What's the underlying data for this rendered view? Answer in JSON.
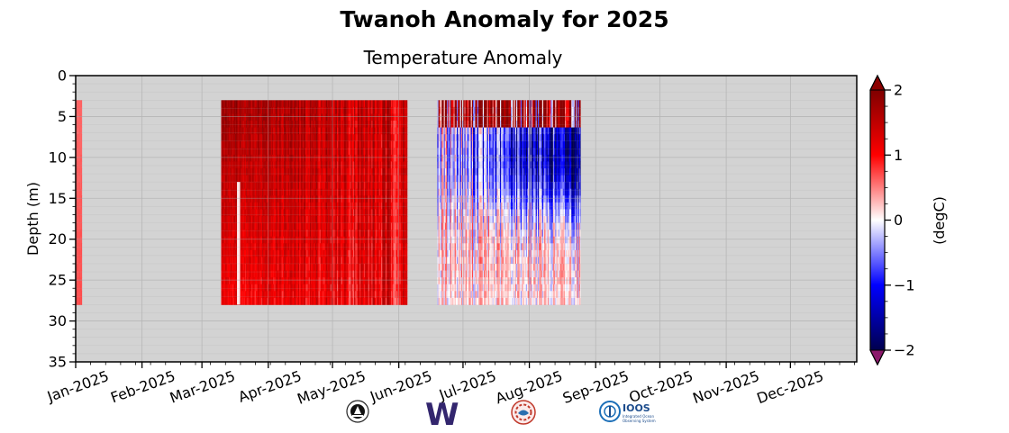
{
  "title": "Twanoh Anomaly for 2025",
  "chart_data": {
    "type": "heatmap",
    "subtitle": "Temperature Anomaly",
    "ylabel": "Depth (m)",
    "ylim": [
      35,
      0
    ],
    "yticks": [
      0,
      5,
      10,
      15,
      20,
      25,
      30,
      35
    ],
    "x_range": [
      "2025-01-01",
      "2025-12-31"
    ],
    "xticks": [
      "Jan-2025",
      "Feb-2025",
      "Mar-2025",
      "Apr-2025",
      "May-2025",
      "Jun-2025",
      "Jul-2025",
      "Aug-2025",
      "Sep-2025",
      "Oct-2025",
      "Nov-2025",
      "Dec-2025"
    ],
    "xtick_dates": [
      "2025-01-01",
      "2025-02-01",
      "2025-03-01",
      "2025-04-01",
      "2025-05-01",
      "2025-06-01",
      "2025-07-01",
      "2025-08-01",
      "2025-09-01",
      "2025-10-01",
      "2025-11-01",
      "2025-12-01"
    ],
    "grid": true,
    "background_color": "#d3d3d3",
    "colorbar": {
      "label": "(degC)",
      "range": [
        -2,
        2
      ],
      "ticks": [
        2,
        1,
        0,
        -1,
        -2
      ],
      "tick_labels": [
        "2",
        "1",
        "0",
        "−1",
        "−2"
      ],
      "colormap": "seismic",
      "extend": "both",
      "over_color": "#8b0000",
      "under_color": "#8b1a6b"
    },
    "data_segments": [
      {
        "start": "2025-01-01",
        "end": "2025-01-04",
        "depth_range": [
          3,
          28
        ],
        "anomaly_surface": 0.6,
        "anomaly_bottom": 0.7,
        "pattern": "uniform"
      },
      {
        "start": "2025-03-10",
        "end": "2025-06-05",
        "depth_range": [
          3,
          28
        ],
        "anomaly_surface": 1.8,
        "anomaly_bottom": 1.1,
        "pattern": "warm"
      },
      {
        "start": "2025-06-19",
        "end": "2025-08-25",
        "depth_range": [
          3,
          28
        ],
        "anomaly_surface": 1.6,
        "anomaly_bottom": 0.1,
        "pattern": "mixed"
      }
    ],
    "gaps": [
      {
        "date": "2025-03-18",
        "depth_range": [
          13,
          28
        ]
      }
    ]
  },
  "logos": [
    {
      "name": "noaa-pmel-logo"
    },
    {
      "name": "university-of-washington-logo",
      "text": "W"
    },
    {
      "name": "nanoos-logo"
    },
    {
      "name": "ioos-logo",
      "text": "IOOS",
      "subtext": "Integrated Ocean Observing System"
    }
  ]
}
